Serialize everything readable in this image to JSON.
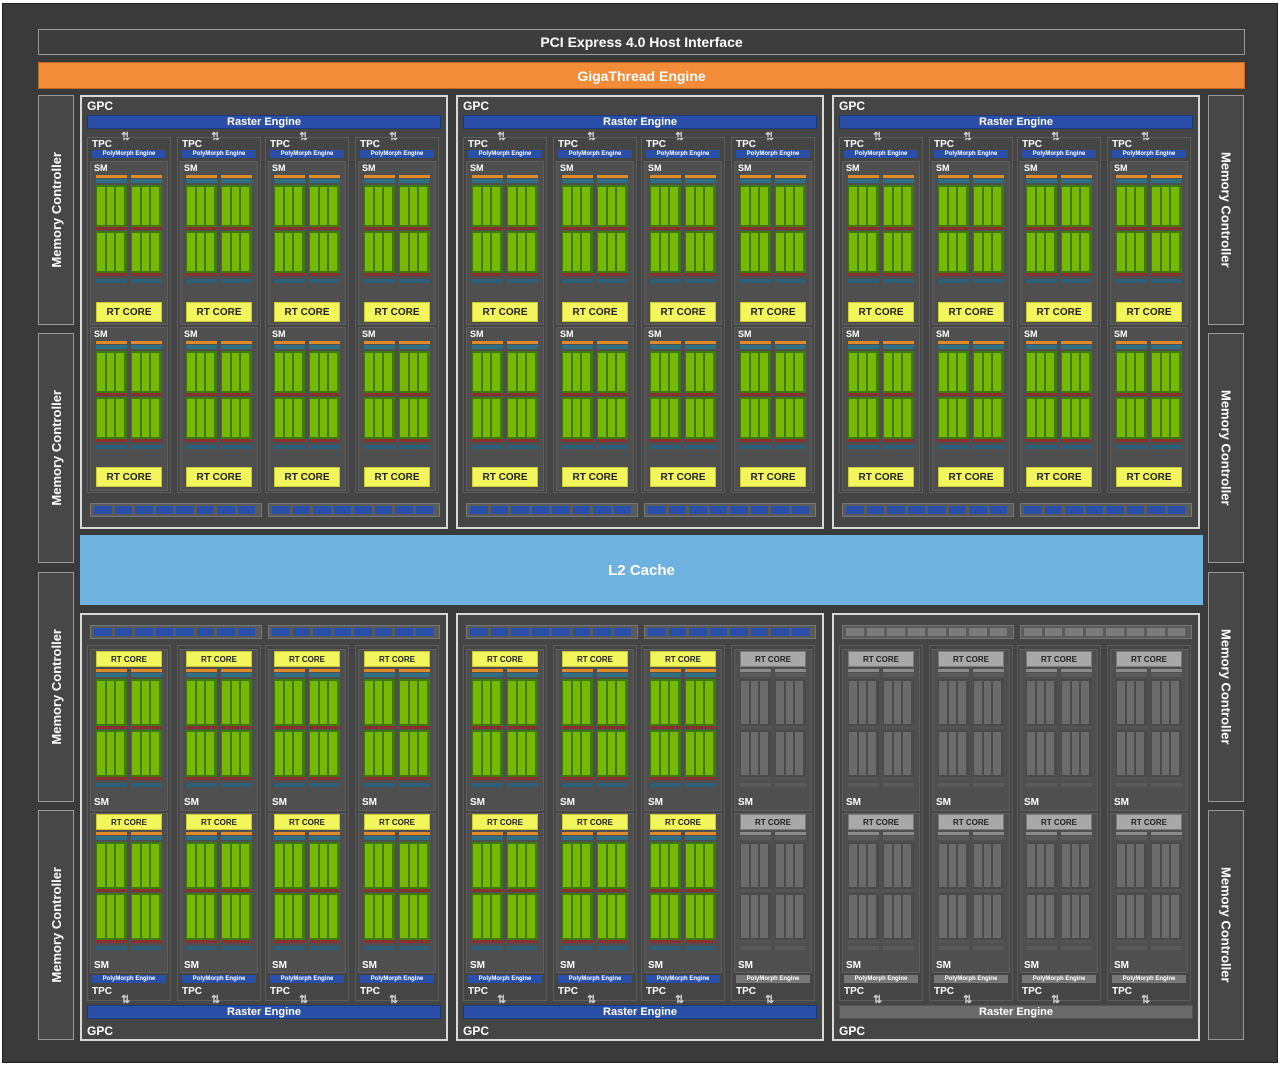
{
  "host_interface": "PCI Express 4.0 Host Interface",
  "gigathread": "GigaThread Engine",
  "l2_cache": "L2 Cache",
  "memory_controller": "Memory Controller",
  "labels": {
    "gpc": "GPC",
    "raster": "Raster Engine",
    "tpc": "TPC",
    "polymorph": "PolyMorph Engine",
    "sm": "SM",
    "rt_core": "RT CORE"
  },
  "gpcs": [
    {
      "row": "top",
      "col": 0,
      "enabled": [
        true,
        true,
        true,
        true
      ]
    },
    {
      "row": "top",
      "col": 1,
      "enabled": [
        true,
        true,
        true,
        true
      ]
    },
    {
      "row": "top",
      "col": 2,
      "enabled": [
        true,
        true,
        true,
        true
      ]
    },
    {
      "row": "bottom",
      "col": 0,
      "enabled": [
        true,
        true,
        true,
        true
      ]
    },
    {
      "row": "bottom",
      "col": 1,
      "enabled": [
        true,
        true,
        true,
        false
      ]
    },
    {
      "row": "bottom",
      "col": 2,
      "enabled": [
        false,
        false,
        false,
        false
      ]
    }
  ],
  "colors": {
    "chip_bg": "#3a3a3a",
    "panel_bg": "#454545",
    "host_bar": "#3d3d3d",
    "gigathread": "#f28c38",
    "l2": "#6fb2e0",
    "raster_blue": "#2a4fa8",
    "rt_yellow": "#f2f55b",
    "core_green": "#76b900",
    "core_dark": "#3f7a10",
    "disabled": "#6b6b6b"
  }
}
